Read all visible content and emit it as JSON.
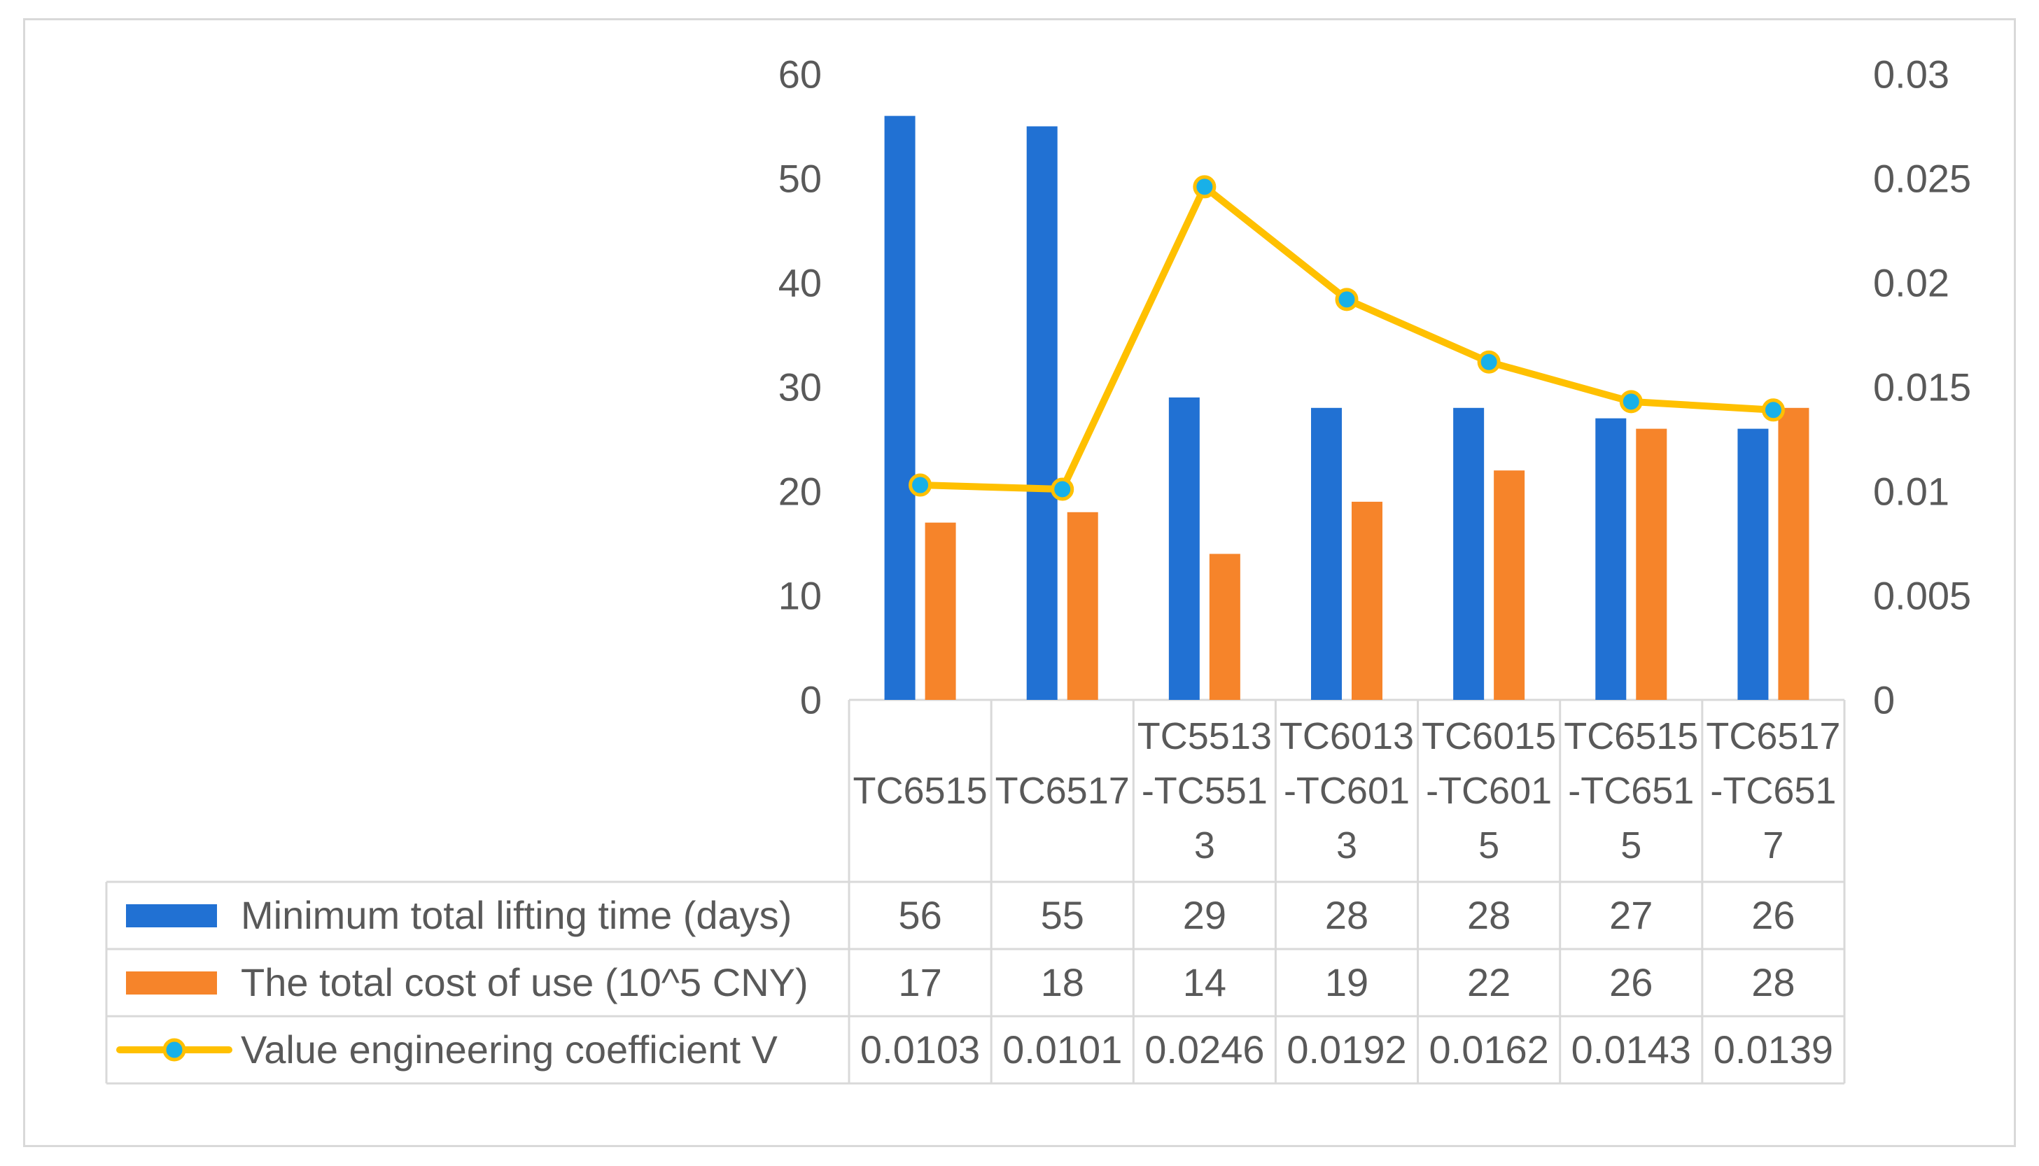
{
  "chart_data": {
    "type": "bar",
    "categories": [
      "TC6515",
      "TC6517",
      "TC5513-TC5513",
      "TC6013-TC6013",
      "TC6015-TC6015",
      "TC6515-TC6515",
      "TC6517-TC6517"
    ],
    "series": [
      {
        "name": "Minimum total lifting time (days)",
        "type": "bar",
        "color": "#2171D3",
        "values": [
          56,
          55,
          29,
          28,
          28,
          27,
          26
        ]
      },
      {
        "name": "The total cost of use (10^5 CNY)",
        "type": "bar",
        "color": "#F6842A",
        "values": [
          17,
          18,
          14,
          19,
          22,
          26,
          28
        ]
      },
      {
        "name": "Value engineering coefficient V",
        "type": "line",
        "color": "#FFC000",
        "marker_color": "#18B0E8",
        "values": [
          0.0103,
          0.0101,
          0.0246,
          0.0192,
          0.0162,
          0.0143,
          0.0139
        ]
      }
    ],
    "left_axis": {
      "ylim": [
        0,
        60
      ],
      "ticks": [
        "0",
        "10",
        "20",
        "30",
        "40",
        "50",
        "60"
      ]
    },
    "right_axis": {
      "ylim": [
        0,
        0.03
      ],
      "ticks": [
        "0",
        "0.005",
        "0.01",
        "0.015",
        "0.02",
        "0.025",
        "0.03"
      ]
    }
  }
}
